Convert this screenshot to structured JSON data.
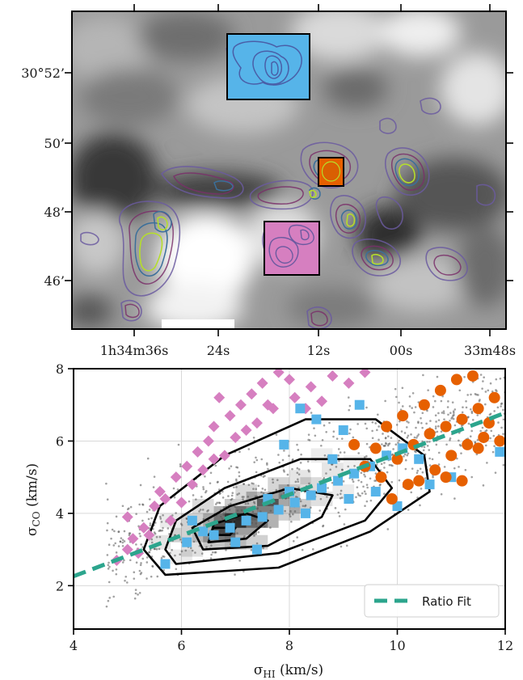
{
  "chart_data": [
    {
      "type": "heatmap",
      "description_kind": "sky-map",
      "xlabel": "",
      "ylabel": "",
      "x_tick_labels": [
        "1h34m36s",
        "24s",
        "12s",
        "00s",
        "33m48s"
      ],
      "y_tick_labels": [
        "30°52’",
        "50’",
        "48’",
        "46’"
      ],
      "colormap": "gray",
      "contour_colors": [
        "#5c3a78",
        "#3b528b",
        "#21918c",
        "#b5de2b"
      ],
      "regions": [
        {
          "name": "blue-box",
          "color": "#56b4e9"
        },
        {
          "name": "orange-box",
          "color": "#e66000"
        },
        {
          "name": "pink-box",
          "color": "#d67fc0"
        }
      ]
    },
    {
      "type": "scatter",
      "xlabel_symbol": "σ",
      "xlabel_sub": "HI",
      "xlabel_unit": " (km/s)",
      "ylabel_symbol": "σ",
      "ylabel_sub": "CO",
      "ylabel_unit": " (km/s)",
      "xlim": [
        4,
        12
      ],
      "ylim": [
        0.8,
        8
      ],
      "x_ticks": [
        4,
        6,
        8,
        10,
        12
      ],
      "y_ticks": [
        2,
        4,
        6,
        8
      ],
      "grid": true,
      "legend_position": "lower-right",
      "fit_line": {
        "label": "Ratio Fit",
        "slope": 0.565,
        "intercept": 0.0,
        "color": "#2ca58d"
      },
      "series": [
        {
          "marker": "diamond",
          "color": "#d67fc0",
          "points": [
            [
              4.8,
              2.7
            ],
            [
              5.0,
              3.0
            ],
            [
              5.1,
              3.3
            ],
            [
              5.3,
              3.6
            ],
            [
              5.0,
              3.9
            ],
            [
              5.5,
              4.2
            ],
            [
              5.6,
              4.6
            ],
            [
              5.9,
              5.0
            ],
            [
              6.1,
              5.3
            ],
            [
              6.3,
              5.7
            ],
            [
              6.5,
              6.0
            ],
            [
              6.6,
              6.4
            ],
            [
              6.9,
              6.7
            ],
            [
              7.1,
              7.0
            ],
            [
              7.3,
              7.3
            ],
            [
              7.5,
              7.6
            ],
            [
              7.8,
              7.9
            ],
            [
              6.0,
              4.3
            ],
            [
              6.2,
              4.8
            ],
            [
              6.4,
              5.2
            ],
            [
              6.8,
              5.6
            ],
            [
              7.0,
              6.1
            ],
            [
              7.4,
              6.5
            ],
            [
              7.7,
              6.9
            ],
            [
              8.1,
              7.2
            ],
            [
              8.4,
              7.5
            ],
            [
              8.8,
              7.8
            ],
            [
              9.1,
              7.6
            ],
            [
              9.4,
              7.9
            ],
            [
              5.4,
              3.4
            ],
            [
              5.8,
              3.8
            ],
            [
              6.7,
              7.2
            ],
            [
              7.6,
              7.0
            ],
            [
              8.0,
              7.7
            ],
            [
              8.6,
              7.1
            ],
            [
              5.2,
              2.9
            ],
            [
              5.7,
              4.4
            ],
            [
              6.6,
              5.5
            ],
            [
              7.2,
              6.3
            ],
            [
              8.3,
              6.9
            ]
          ]
        },
        {
          "marker": "square",
          "color": "#56b4e9",
          "points": [
            [
              5.7,
              2.6
            ],
            [
              6.1,
              3.2
            ],
            [
              6.6,
              3.4
            ],
            [
              6.9,
              3.6
            ],
            [
              7.2,
              3.8
            ],
            [
              7.5,
              3.9
            ],
            [
              7.8,
              4.1
            ],
            [
              8.1,
              4.3
            ],
            [
              8.4,
              4.5
            ],
            [
              8.6,
              4.7
            ],
            [
              8.9,
              4.9
            ],
            [
              9.2,
              5.1
            ],
            [
              9.5,
              5.3
            ],
            [
              9.8,
              5.6
            ],
            [
              10.1,
              5.8
            ],
            [
              10.4,
              5.5
            ],
            [
              8.2,
              6.9
            ],
            [
              8.5,
              6.6
            ],
            [
              9.0,
              6.3
            ],
            [
              7.9,
              5.9
            ],
            [
              8.8,
              5.5
            ],
            [
              9.6,
              4.6
            ],
            [
              10.0,
              4.2
            ],
            [
              10.6,
              4.8
            ],
            [
              11.0,
              5.0
            ],
            [
              7.0,
              3.2
            ],
            [
              7.4,
              3.0
            ],
            [
              6.4,
              3.5
            ],
            [
              6.2,
              3.8
            ],
            [
              9.3,
              7.0
            ],
            [
              11.9,
              5.7
            ],
            [
              8.0,
              4.6
            ],
            [
              8.3,
              4.0
            ],
            [
              7.6,
              4.4
            ],
            [
              9.1,
              4.4
            ]
          ]
        },
        {
          "marker": "circle",
          "color": "#e66000",
          "points": [
            [
              9.4,
              5.3
            ],
            [
              9.7,
              5.0
            ],
            [
              10.0,
              5.5
            ],
            [
              10.3,
              5.9
            ],
            [
              10.6,
              6.2
            ],
            [
              10.9,
              6.4
            ],
            [
              11.2,
              6.6
            ],
            [
              11.5,
              6.9
            ],
            [
              11.8,
              7.2
            ],
            [
              10.1,
              6.7
            ],
            [
              10.5,
              7.0
            ],
            [
              10.8,
              7.4
            ],
            [
              11.1,
              7.7
            ],
            [
              11.4,
              7.8
            ],
            [
              10.2,
              4.8
            ],
            [
              10.7,
              5.2
            ],
            [
              11.0,
              5.6
            ],
            [
              11.3,
              5.9
            ],
            [
              11.6,
              6.1
            ],
            [
              11.9,
              6.0
            ],
            [
              9.9,
              4.4
            ],
            [
              10.4,
              4.9
            ],
            [
              9.6,
              5.8
            ],
            [
              9.2,
              5.9
            ],
            [
              9.8,
              6.4
            ],
            [
              11.7,
              6.5
            ],
            [
              11.5,
              5.8
            ],
            [
              10.9,
              5.0
            ],
            [
              11.2,
              4.9
            ]
          ]
        }
      ]
    }
  ]
}
